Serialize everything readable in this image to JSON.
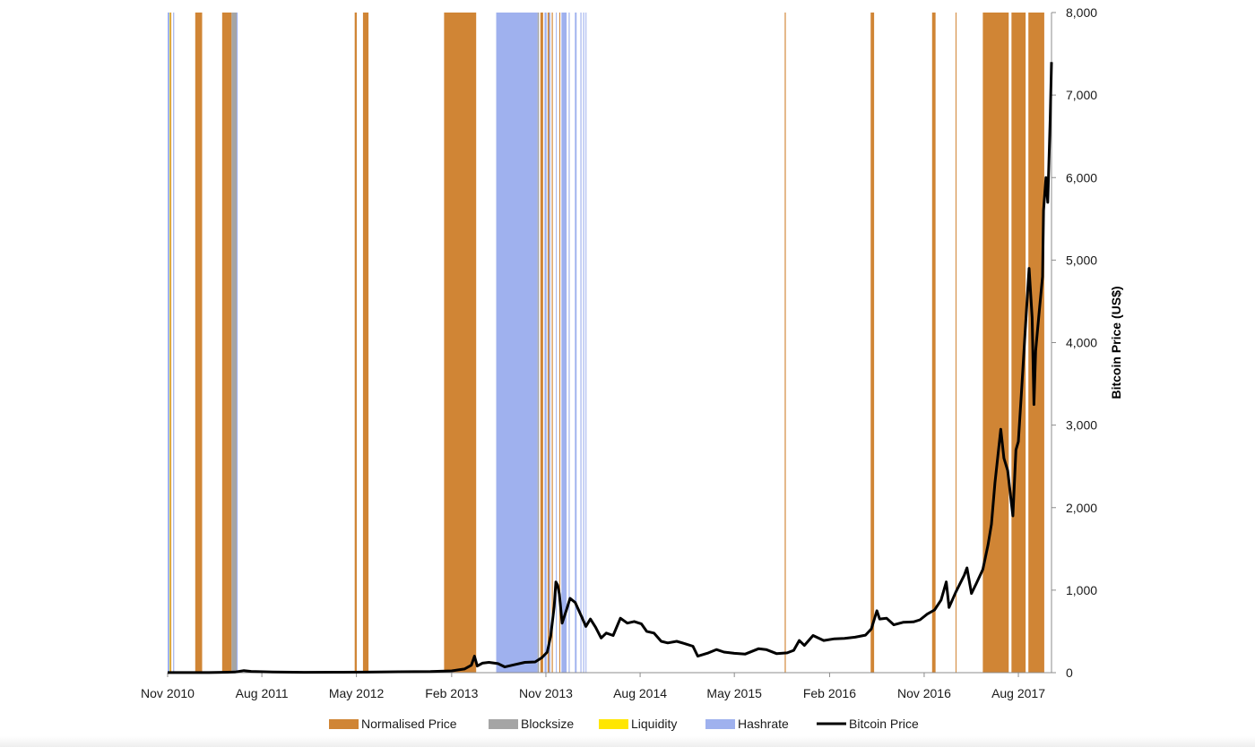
{
  "chart_data": {
    "type": "line",
    "title": "",
    "xlabel": "",
    "ylabel": "Bitcoin Price (US$)",
    "ylim": [
      0,
      8000
    ],
    "y_axis_side": "right",
    "y_ticks": [
      0,
      1000,
      2000,
      3000,
      4000,
      5000,
      6000,
      7000,
      8000
    ],
    "y_tick_labels": [
      "0",
      "1,000",
      "2,000",
      "3,000",
      "4,000",
      "5,000",
      "6,000",
      "7,000",
      "8,000"
    ],
    "xlim": [
      "2010-11-01",
      "2017-11-05"
    ],
    "x_ticks": [
      "2010-11-01",
      "2011-08-01",
      "2012-05-01",
      "2013-02-01",
      "2013-11-01",
      "2014-08-01",
      "2015-05-01",
      "2016-02-01",
      "2016-11-01",
      "2017-08-01"
    ],
    "x_tick_labels": [
      "Nov 2010",
      "Aug 2011",
      "May 2012",
      "Feb 2013",
      "Nov 2013",
      "Aug 2014",
      "May 2015",
      "Feb 2016",
      "Nov 2016",
      "Aug 2017"
    ],
    "grid": false,
    "legend": {
      "position": "bottom",
      "entries": [
        {
          "label": "Normalised Price",
          "kind": "box",
          "color": "#d08535"
        },
        {
          "label": "Blocksize",
          "kind": "box",
          "color": "#a5a5a5"
        },
        {
          "label": "Liquidity",
          "kind": "box",
          "color": "#ffe600"
        },
        {
          "label": "Hashrate",
          "kind": "box",
          "color": "#9fb1ee"
        },
        {
          "label": "Bitcoin Price",
          "kind": "line",
          "color": "#000000"
        }
      ]
    },
    "bands": [
      {
        "series": "Hashrate",
        "color": "#9fb1ee",
        "ranges": [
          [
            "2010-11-01",
            "2010-11-07"
          ],
          [
            "2010-11-17",
            "2010-11-20"
          ],
          [
            "2011-04-16",
            "2011-04-20"
          ],
          [
            "2011-05-20",
            "2011-05-23"
          ],
          [
            "2013-06-10",
            "2013-10-08"
          ],
          [
            "2013-10-28",
            "2013-11-03"
          ],
          [
            "2013-11-10",
            "2013-11-14"
          ],
          [
            "2013-11-30",
            "2013-12-02"
          ],
          [
            "2013-12-16",
            "2013-12-31"
          ],
          [
            "2014-01-06",
            "2014-01-09"
          ],
          [
            "2014-01-24",
            "2014-01-29"
          ],
          [
            "2014-02-09",
            "2014-02-12"
          ],
          [
            "2014-02-17",
            "2014-02-20"
          ],
          [
            "2014-02-24",
            "2014-02-26"
          ]
        ]
      },
      {
        "series": "Blocksize",
        "color": "#a5a5a5",
        "ranges": [
          [
            "2011-05-05",
            "2011-05-20"
          ],
          [
            "2013-10-08",
            "2013-10-12"
          ]
        ]
      },
      {
        "series": "Liquidity",
        "color": "#ffe600",
        "ranges": [
          [
            "2010-11-07",
            "2010-11-09"
          ]
        ]
      },
      {
        "series": "Normalised Price",
        "color": "#d08535",
        "ranges": [
          [
            "2010-11-09",
            "2010-11-11"
          ],
          [
            "2011-01-20",
            "2011-02-09"
          ],
          [
            "2011-04-08",
            "2011-05-05"
          ],
          [
            "2012-04-26",
            "2012-05-02"
          ],
          [
            "2012-05-20",
            "2012-06-05"
          ],
          [
            "2013-01-10",
            "2013-04-13"
          ],
          [
            "2013-10-16",
            "2013-10-24"
          ],
          [
            "2013-11-06",
            "2013-11-10"
          ],
          [
            "2013-11-18",
            "2013-11-21"
          ],
          [
            "2013-12-10",
            "2013-12-12"
          ],
          [
            "2015-09-24",
            "2015-09-27"
          ],
          [
            "2016-05-30",
            "2016-06-09"
          ],
          [
            "2016-11-24",
            "2016-12-04"
          ],
          [
            "2017-01-31",
            "2017-02-02"
          ],
          [
            "2017-04-20",
            "2017-07-04"
          ],
          [
            "2017-07-12",
            "2017-08-22"
          ],
          [
            "2017-08-30",
            "2017-10-15"
          ]
        ]
      }
    ],
    "series": [
      {
        "name": "Bitcoin Price",
        "color": "#000000",
        "points": [
          [
            "2010-11-01",
            1
          ],
          [
            "2011-03-01",
            1
          ],
          [
            "2011-05-15",
            8
          ],
          [
            "2011-06-10",
            25
          ],
          [
            "2011-07-01",
            15
          ],
          [
            "2011-09-01",
            8
          ],
          [
            "2011-12-01",
            4
          ],
          [
            "2012-03-01",
            5
          ],
          [
            "2012-06-01",
            6
          ],
          [
            "2012-09-01",
            11
          ],
          [
            "2012-12-01",
            13
          ],
          [
            "2013-02-01",
            22
          ],
          [
            "2013-03-10",
            45
          ],
          [
            "2013-03-30",
            90
          ],
          [
            "2013-04-08",
            200
          ],
          [
            "2013-04-16",
            80
          ],
          [
            "2013-05-01",
            115
          ],
          [
            "2013-05-20",
            125
          ],
          [
            "2013-06-15",
            110
          ],
          [
            "2013-07-05",
            70
          ],
          [
            "2013-08-01",
            95
          ],
          [
            "2013-09-01",
            125
          ],
          [
            "2013-10-01",
            130
          ],
          [
            "2013-10-20",
            180
          ],
          [
            "2013-11-05",
            250
          ],
          [
            "2013-11-15",
            450
          ],
          [
            "2013-11-25",
            800
          ],
          [
            "2013-11-30",
            1100
          ],
          [
            "2013-12-05",
            1060
          ],
          [
            "2013-12-10",
            950
          ],
          [
            "2013-12-18",
            600
          ],
          [
            "2014-01-01",
            780
          ],
          [
            "2014-01-10",
            900
          ],
          [
            "2014-01-25",
            850
          ],
          [
            "2014-02-10",
            700
          ],
          [
            "2014-02-25",
            560
          ],
          [
            "2014-03-10",
            650
          ],
          [
            "2014-03-25",
            550
          ],
          [
            "2014-04-10",
            420
          ],
          [
            "2014-04-25",
            480
          ],
          [
            "2014-05-15",
            450
          ],
          [
            "2014-06-05",
            660
          ],
          [
            "2014-06-25",
            600
          ],
          [
            "2014-07-15",
            620
          ],
          [
            "2014-08-05",
            590
          ],
          [
            "2014-08-20",
            500
          ],
          [
            "2014-09-10",
            480
          ],
          [
            "2014-10-01",
            380
          ],
          [
            "2014-10-20",
            360
          ],
          [
            "2014-11-15",
            380
          ],
          [
            "2014-12-10",
            350
          ],
          [
            "2015-01-01",
            320
          ],
          [
            "2015-01-15",
            200
          ],
          [
            "2015-02-15",
            240
          ],
          [
            "2015-03-10",
            280
          ],
          [
            "2015-04-01",
            250
          ],
          [
            "2015-05-01",
            235
          ],
          [
            "2015-06-01",
            225
          ],
          [
            "2015-07-10",
            290
          ],
          [
            "2015-08-01",
            280
          ],
          [
            "2015-09-01",
            230
          ],
          [
            "2015-10-01",
            240
          ],
          [
            "2015-10-20",
            270
          ],
          [
            "2015-11-05",
            390
          ],
          [
            "2015-11-20",
            330
          ],
          [
            "2015-12-15",
            450
          ],
          [
            "2016-01-15",
            390
          ],
          [
            "2016-02-15",
            410
          ],
          [
            "2016-03-15",
            415
          ],
          [
            "2016-04-15",
            430
          ],
          [
            "2016-05-15",
            455
          ],
          [
            "2016-06-01",
            530
          ],
          [
            "2016-06-17",
            750
          ],
          [
            "2016-06-25",
            650
          ],
          [
            "2016-07-15",
            660
          ],
          [
            "2016-08-05",
            580
          ],
          [
            "2016-09-01",
            610
          ],
          [
            "2016-10-01",
            615
          ],
          [
            "2016-10-20",
            640
          ],
          [
            "2016-11-10",
            710
          ],
          [
            "2016-12-01",
            760
          ],
          [
            "2016-12-20",
            880
          ],
          [
            "2017-01-04",
            1100
          ],
          [
            "2017-01-12",
            790
          ],
          [
            "2017-02-01",
            980
          ],
          [
            "2017-02-25",
            1180
          ],
          [
            "2017-03-05",
            1270
          ],
          [
            "2017-03-18",
            960
          ],
          [
            "2017-04-01",
            1080
          ],
          [
            "2017-04-20",
            1250
          ],
          [
            "2017-05-05",
            1550
          ],
          [
            "2017-05-15",
            1800
          ],
          [
            "2017-05-25",
            2300
          ],
          [
            "2017-06-11",
            2950
          ],
          [
            "2017-06-20",
            2600
          ],
          [
            "2017-07-01",
            2450
          ],
          [
            "2017-07-16",
            1900
          ],
          [
            "2017-07-25",
            2700
          ],
          [
            "2017-08-01",
            2800
          ],
          [
            "2017-08-10",
            3400
          ],
          [
            "2017-08-20",
            4100
          ],
          [
            "2017-09-01",
            4900
          ],
          [
            "2017-09-10",
            4300
          ],
          [
            "2017-09-15",
            3250
          ],
          [
            "2017-09-20",
            3900
          ],
          [
            "2017-10-01",
            4400
          ],
          [
            "2017-10-10",
            4800
          ],
          [
            "2017-10-13",
            5600
          ],
          [
            "2017-10-20",
            6000
          ],
          [
            "2017-10-25",
            5700
          ],
          [
            "2017-11-01",
            6700
          ],
          [
            "2017-11-05",
            7400
          ]
        ]
      }
    ]
  }
}
